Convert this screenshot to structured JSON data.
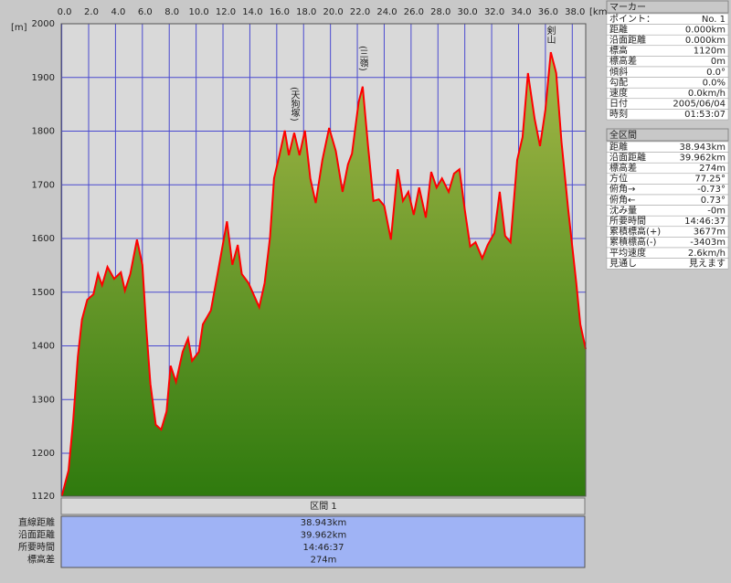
{
  "chart_data": {
    "type": "area",
    "y_label": "[m]",
    "x_label": "[km]",
    "x": [
      0,
      0.5,
      0.85,
      1.2,
      1.5,
      1.9,
      2.35,
      2.7,
      3.0,
      3.4,
      3.9,
      4.4,
      4.7,
      5.1,
      5.6,
      6.0,
      6.3,
      6.6,
      7.0,
      7.4,
      7.8,
      8.1,
      8.5,
      9.0,
      9.4,
      9.7,
      10.2,
      10.5,
      11.1,
      11.6,
      12.3,
      12.7,
      13.1,
      13.4,
      13.9,
      14.5,
      14.7,
      15.1,
      15.5,
      15.8,
      16.2,
      16.6,
      16.9,
      17.3,
      17.7,
      18.1,
      18.5,
      18.9,
      19.4,
      19.9,
      20.4,
      20.9,
      21.3,
      21.6,
      22.1,
      22.4,
      22.8,
      23.2,
      23.6,
      24.0,
      24.5,
      25.0,
      25.4,
      25.8,
      26.2,
      26.6,
      27.1,
      27.5,
      27.9,
      28.3,
      28.8,
      29.2,
      29.6,
      30.0,
      30.4,
      30.8,
      31.3,
      31.7,
      32.2,
      32.6,
      33.0,
      33.4,
      33.9,
      34.3,
      34.7,
      35.2,
      35.6,
      36.0,
      36.4,
      36.8,
      37.2,
      37.7,
      38.3,
      38.6,
      39.0
    ],
    "values": [
      1120,
      1168,
      1261,
      1380,
      1449,
      1486,
      1496,
      1534,
      1513,
      1547,
      1525,
      1537,
      1503,
      1534,
      1598,
      1551,
      1431,
      1329,
      1253,
      1244,
      1278,
      1363,
      1333,
      1389,
      1414,
      1372,
      1389,
      1440,
      1466,
      1534,
      1632,
      1551,
      1588,
      1534,
      1517,
      1483,
      1472,
      1517,
      1602,
      1712,
      1755,
      1801,
      1755,
      1797,
      1755,
      1801,
      1712,
      1666,
      1746,
      1806,
      1763,
      1687,
      1738,
      1758,
      1854,
      1883,
      1772,
      1670,
      1673,
      1661,
      1598,
      1729,
      1670,
      1687,
      1644,
      1695,
      1639,
      1724,
      1695,
      1712,
      1687,
      1721,
      1729,
      1653,
      1585,
      1593,
      1563,
      1588,
      1610,
      1687,
      1605,
      1593,
      1746,
      1789,
      1908,
      1823,
      1772,
      1840,
      1947,
      1908,
      1780,
      1653,
      1517,
      1440,
      1394
    ],
    "color": "#ff0000",
    "grid": true,
    "xlim": [
      0,
      39.0
    ],
    "ylim": [
      1120,
      2000
    ],
    "xticks": [
      {
        "value": 0,
        "label": "0.0"
      },
      {
        "value": 2,
        "label": "2.0"
      },
      {
        "value": 4,
        "label": "4.0"
      },
      {
        "value": 6,
        "label": "6.0"
      },
      {
        "value": 8,
        "label": "8.0"
      },
      {
        "value": 10,
        "label": "10.0"
      },
      {
        "value": 12,
        "label": "12.0"
      },
      {
        "value": 14,
        "label": "14.0"
      },
      {
        "value": 16,
        "label": "16.0"
      },
      {
        "value": 18,
        "label": "18.0"
      },
      {
        "value": 20,
        "label": "20.0"
      },
      {
        "value": 22,
        "label": "22.0"
      },
      {
        "value": 24,
        "label": "24.0"
      },
      {
        "value": 26,
        "label": "26.0"
      },
      {
        "value": 28,
        "label": "28.0"
      },
      {
        "value": 30,
        "label": "30.0"
      },
      {
        "value": 32,
        "label": "32.0"
      },
      {
        "value": 34,
        "label": "34.0"
      },
      {
        "value": 36,
        "label": "36.0"
      },
      {
        "value": 38,
        "label": "38.0"
      }
    ],
    "yticks": [
      1120,
      1200,
      1300,
      1400,
      1500,
      1600,
      1700,
      1800,
      1900,
      2000
    ],
    "annotations": [
      "(天狗塚)",
      "(三嶺)",
      "剣山"
    ]
  },
  "marker_panel": {
    "title": "マーカー",
    "rows": [
      [
        "ポイント：",
        "No. 1"
      ],
      [
        "距離",
        "0.000km"
      ],
      [
        "沿面距離",
        "0.000km"
      ],
      [
        "標高",
        "1120m"
      ],
      [
        "標高差",
        "0m"
      ],
      [
        "傾斜",
        "0.0°"
      ],
      [
        "勾配",
        "0.0%"
      ],
      [
        "速度",
        "0.0km/h"
      ],
      [
        "日付",
        "2005/06/04"
      ],
      [
        "時刻",
        "01:53:07"
      ]
    ]
  },
  "total_panel": {
    "title": "全区間",
    "rows": [
      [
        "距離",
        "38.943km"
      ],
      [
        "沿面距離",
        "39.962km"
      ],
      [
        "標高差",
        "274m"
      ],
      [
        "方位",
        "77.25°"
      ],
      [
        "俯角→",
        "-0.73°"
      ],
      [
        "俯角←",
        "0.73°"
      ],
      [
        "沈み量",
        "-0m"
      ],
      [
        "所要時間",
        "14:46:37"
      ],
      [
        "累積標高(+)",
        "3677m"
      ],
      [
        "累積標高(-)",
        "-3403m"
      ],
      [
        "平均速度",
        "2.6km/h"
      ],
      [
        "見通し",
        "見えます"
      ]
    ]
  },
  "section_panel": {
    "title": "区間 1",
    "rows": [
      [
        "直線距離",
        "38.943km"
      ],
      [
        "沿面距離",
        "39.962km"
      ],
      [
        "所要時間",
        "14:46:37"
      ],
      [
        "標高差",
        "274m"
      ]
    ]
  }
}
